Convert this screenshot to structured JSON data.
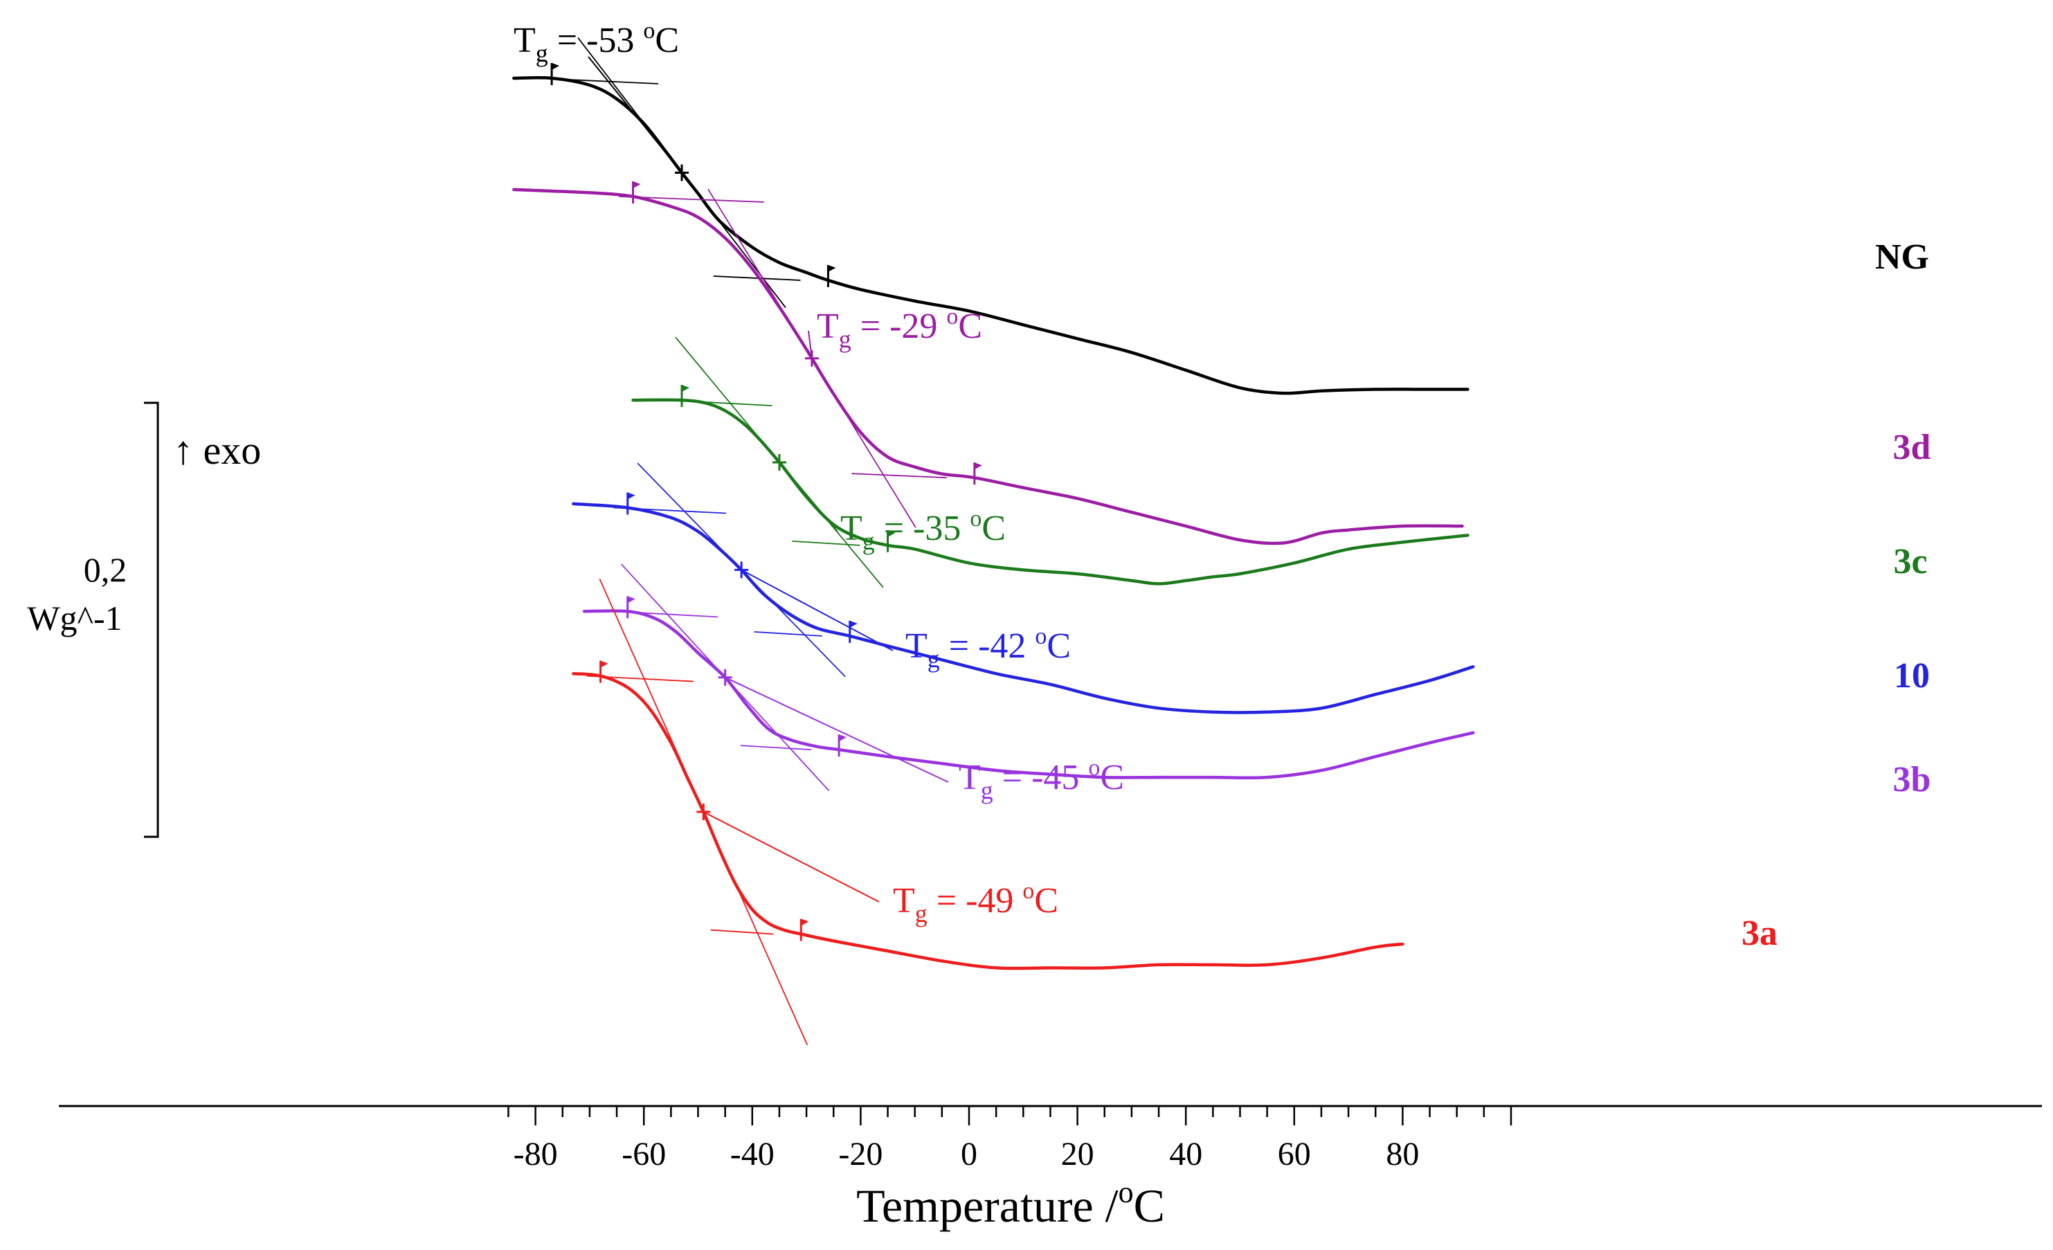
{
  "chart_data": {
    "type": "line",
    "title": "",
    "xlabel": "Temperature /",
    "xlabel_unit_super": "o",
    "xlabel_unit": "C",
    "xlim": [
      -85,
      100
    ],
    "xticks": [
      -80,
      -60,
      -40,
      -20,
      0,
      20,
      40,
      60,
      80
    ],
    "scale_bar": {
      "value_label": "0,2",
      "unit_label": "Wg^-1",
      "exo_label": "↑ exo"
    },
    "series": [
      {
        "name": "NG",
        "color": "#000000",
        "offset": 0.0,
        "tg_label": "T",
        "tg_sub": "g",
        "tg_value": " = -53 ",
        "tg_deg": "o",
        "tg_unit": "C",
        "tg": -53,
        "onset": -77,
        "endset": -26,
        "x": [
          -84,
          -77,
          -70,
          -65,
          -60,
          -56,
          -53,
          -50,
          -46,
          -40,
          -35,
          -30,
          -26,
          -20,
          -10,
          0,
          10,
          20,
          30,
          40,
          50,
          58,
          65,
          75,
          85,
          92
        ],
        "y": [
          0.0,
          0.0,
          -0.009,
          -0.027,
          -0.059,
          -0.095,
          -0.123,
          -0.15,
          -0.186,
          -0.22,
          -0.24,
          -0.253,
          -0.263,
          -0.275,
          -0.29,
          -0.303,
          -0.321,
          -0.339,
          -0.357,
          -0.38,
          -0.403,
          -0.41,
          -0.407,
          -0.405,
          -0.405,
          -0.405
        ]
      },
      {
        "name": "3d",
        "color": "#9b1da3",
        "offset": -0.145,
        "tg_label": "T",
        "tg_sub": "g",
        "tg_value": " = -29 ",
        "tg_deg": "o",
        "tg_unit": "C",
        "tg": -29,
        "onset": -62,
        "endset": 1,
        "x": [
          -84,
          -70,
          -62,
          -55,
          -50,
          -45,
          -40,
          -35,
          -30,
          -25,
          -20,
          -15,
          -10,
          -5,
          1,
          10,
          20,
          30,
          40,
          50,
          58,
          65,
          70,
          80,
          91
        ],
        "y": [
          0.0,
          -0.004,
          -0.009,
          -0.022,
          -0.036,
          -0.063,
          -0.103,
          -0.153,
          -0.208,
          -0.266,
          -0.316,
          -0.348,
          -0.361,
          -0.37,
          -0.375,
          -0.388,
          -0.402,
          -0.42,
          -0.438,
          -0.456,
          -0.46,
          -0.447,
          -0.443,
          -0.438,
          -0.438
        ]
      },
      {
        "name": "3c",
        "color": "#1b7a1b",
        "offset": -0.419,
        "tg_label": "T",
        "tg_sub": "g",
        "tg_value": " = -35 ",
        "tg_deg": "o",
        "tg_unit": "C",
        "tg": -35,
        "onset": -53,
        "endset": -15,
        "x": [
          -62,
          -53,
          -48,
          -44,
          -40,
          -35,
          -30,
          -25,
          -20,
          -15,
          -10,
          0,
          10,
          20,
          30,
          35,
          40,
          45,
          50,
          60,
          70,
          80,
          92
        ],
        "y": [
          0.0,
          0.0,
          -0.005,
          -0.018,
          -0.041,
          -0.081,
          -0.126,
          -0.162,
          -0.18,
          -0.189,
          -0.194,
          -0.212,
          -0.221,
          -0.226,
          -0.235,
          -0.239,
          -0.235,
          -0.23,
          -0.226,
          -0.212,
          -0.194,
          -0.185,
          -0.176
        ]
      },
      {
        "name": "10",
        "color": "#2424e0",
        "offset": -0.554,
        "tg_label": "T",
        "tg_sub": "g",
        "tg_value": " = -42 ",
        "tg_deg": "o",
        "tg_unit": "C",
        "tg": -42,
        "onset": -63,
        "endset": -22,
        "x": [
          -73,
          -63,
          -55,
          -50,
          -46,
          -42,
          -38,
          -33,
          -28,
          -22,
          -15,
          -5,
          5,
          15,
          25,
          35,
          45,
          55,
          65,
          75,
          85,
          93
        ],
        "y": [
          0.0,
          -0.005,
          -0.018,
          -0.036,
          -0.059,
          -0.086,
          -0.117,
          -0.144,
          -0.162,
          -0.172,
          -0.185,
          -0.203,
          -0.221,
          -0.235,
          -0.253,
          -0.266,
          -0.271,
          -0.271,
          -0.266,
          -0.248,
          -0.23,
          -0.212
        ]
      },
      {
        "name": "3b",
        "color": "#9933dd",
        "offset": -0.694,
        "tg_label": "T",
        "tg_sub": "g",
        "tg_value": " = -45 ",
        "tg_deg": "o",
        "tg_unit": "C",
        "tg": -45,
        "onset": -63,
        "endset": -24,
        "x": [
          -71,
          -63,
          -58,
          -54,
          -50,
          -45,
          -41,
          -37,
          -33,
          -28,
          -24,
          -15,
          -5,
          5,
          15,
          25,
          35,
          45,
          55,
          65,
          75,
          85,
          93
        ],
        "y": [
          0.0,
          0.0,
          -0.009,
          -0.027,
          -0.054,
          -0.086,
          -0.122,
          -0.153,
          -0.167,
          -0.176,
          -0.18,
          -0.189,
          -0.198,
          -0.207,
          -0.212,
          -0.216,
          -0.216,
          -0.216,
          -0.216,
          -0.207,
          -0.189,
          -0.171,
          -0.158
        ]
      },
      {
        "name": "3a",
        "color": "#ee1c1c",
        "offset": -0.775,
        "tg_label": "T",
        "tg_sub": "g",
        "tg_value": " = -49 ",
        "tg_deg": "o",
        "tg_unit": "C",
        "tg": -49,
        "onset": -68,
        "endset": -31,
        "x": [
          -73,
          -68,
          -63,
          -59,
          -55,
          -52,
          -49,
          -46,
          -43,
          -40,
          -37,
          -34,
          -31,
          -25,
          -15,
          -5,
          5,
          15,
          25,
          35,
          45,
          55,
          65,
          75,
          80
        ],
        "y": [
          0.0,
          -0.003,
          -0.018,
          -0.045,
          -0.09,
          -0.135,
          -0.18,
          -0.23,
          -0.275,
          -0.307,
          -0.325,
          -0.334,
          -0.339,
          -0.348,
          -0.361,
          -0.374,
          -0.383,
          -0.383,
          -0.383,
          -0.379,
          -0.379,
          -0.379,
          -0.37,
          -0.356,
          -0.352
        ]
      }
    ]
  }
}
